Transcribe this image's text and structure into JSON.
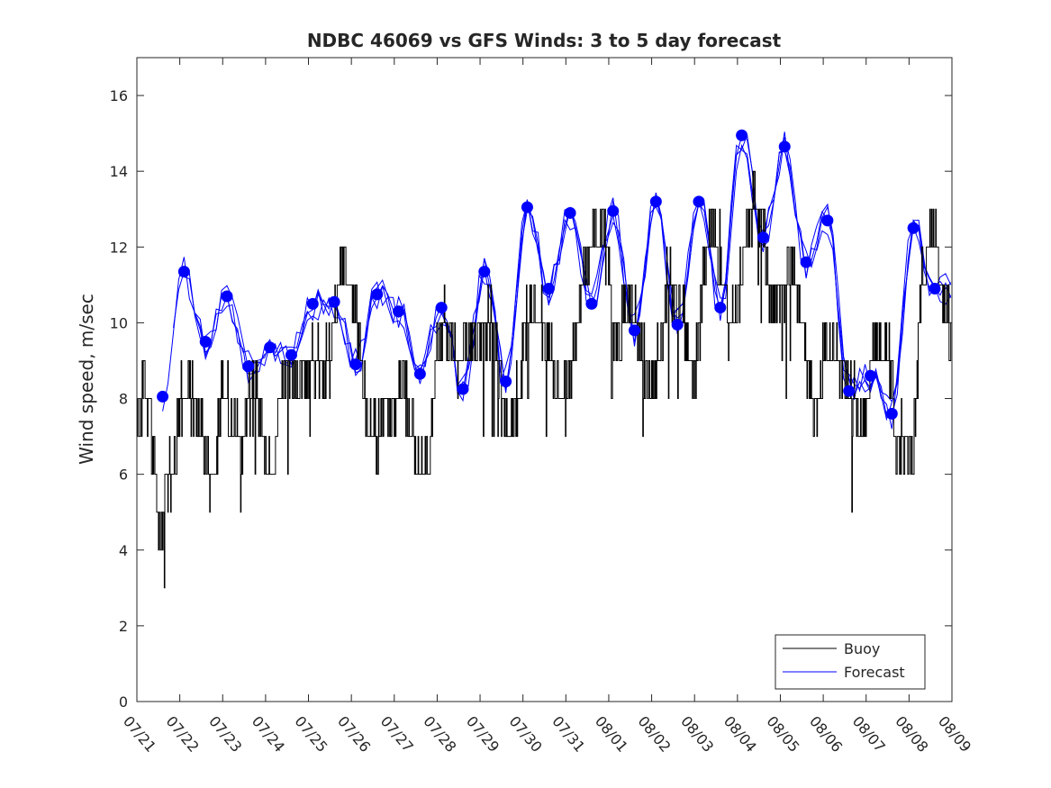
{
  "chart_data": {
    "type": "line",
    "title": "NDBC 46069 vs GFS Winds: 3 to 5 day forecast",
    "xlabel": "",
    "ylabel": "Wind speed, m/sec",
    "xlim": [
      0,
      19
    ],
    "ylim": [
      0,
      17
    ],
    "y_ticks": [
      0,
      2,
      4,
      6,
      8,
      10,
      12,
      14,
      16
    ],
    "x_tick_labels": [
      "07/21",
      "07/22",
      "07/23",
      "07/24",
      "07/25",
      "07/26",
      "07/27",
      "07/28",
      "07/29",
      "07/30",
      "07/31",
      "08/01",
      "08/02",
      "08/03",
      "08/04",
      "08/05",
      "08/06",
      "08/07",
      "08/08",
      "08/09"
    ],
    "grid": false,
    "legend": {
      "position": "bottom-right",
      "entries": [
        "Buoy",
        "Forecast"
      ]
    },
    "colors": {
      "buoy": "#000000",
      "forecast": "#0000ff",
      "markers": "#0000ff"
    },
    "buoy_anchor_points": {
      "x": [
        0,
        0.1,
        0.2,
        0.35,
        0.5,
        0.6,
        0.65,
        0.75,
        0.9,
        1.0,
        1.15,
        1.3,
        1.5,
        1.7,
        1.85,
        2.0,
        2.2,
        2.45,
        2.6,
        2.75,
        2.9,
        3.05,
        3.2,
        3.35,
        3.5,
        3.7,
        3.9,
        4.1,
        4.3,
        4.5,
        4.7,
        4.85,
        5.0,
        5.15,
        5.3,
        5.5,
        5.65,
        5.8,
        6.0,
        6.2,
        6.45,
        6.6,
        6.8,
        7.0,
        7.15,
        7.3,
        7.5,
        7.7,
        7.9,
        8.15,
        8.35,
        8.5,
        8.65,
        8.8,
        8.95,
        9.1,
        9.25,
        9.45,
        9.65,
        9.85,
        10.0,
        10.2,
        10.4,
        10.6,
        10.8,
        10.95,
        11.15,
        11.35,
        11.55,
        11.75,
        11.95,
        12.2,
        12.4,
        12.6,
        12.8,
        13.0,
        13.2,
        13.4,
        13.6,
        13.8,
        14.0,
        14.2,
        14.4,
        14.6,
        14.8,
        15.0,
        15.25,
        15.45,
        15.65,
        15.85,
        16.0,
        16.2,
        16.4,
        16.6,
        16.8,
        17.0,
        17.15,
        17.3,
        17.5,
        17.7,
        17.9,
        18.1,
        18.3,
        18.5,
        18.7,
        18.9,
        19.0
      ],
      "y": [
        7,
        8,
        8.5,
        7,
        5,
        4,
        5.5,
        6,
        6.5,
        8,
        8.5,
        8,
        7.5,
        6,
        6.5,
        8.5,
        7.5,
        7,
        8,
        8.5,
        7,
        6,
        6.5,
        8,
        8.5,
        8.5,
        8.5,
        9,
        9,
        9,
        11,
        12,
        11,
        10,
        8,
        7,
        7,
        8,
        8,
        8.5,
        7,
        6,
        6.5,
        9,
        10,
        9.5,
        9,
        9.5,
        9.5,
        10,
        10,
        8,
        7,
        7.5,
        8.5,
        10,
        10.5,
        10,
        9,
        8,
        8.5,
        9.5,
        11,
        12.5,
        12.5,
        12,
        9.5,
        10,
        10.5,
        9.5,
        8,
        9.5,
        11.5,
        10.5,
        10,
        8.5,
        11,
        12.5,
        12,
        10,
        10.5,
        12,
        13.5,
        12.5,
        10,
        11,
        11.5,
        10.5,
        8.5,
        7.5,
        9,
        9.5,
        9,
        8.5,
        7.5,
        8,
        9,
        9.5,
        9.5,
        7,
        7,
        6.5,
        11,
        12.5,
        11.5,
        10,
        9.5
      ]
    },
    "forecast_markers": {
      "x": [
        0.6,
        1.1,
        1.6,
        2.1,
        2.6,
        3.1,
        3.6,
        4.1,
        4.6,
        5.1,
        5.6,
        6.1,
        6.6,
        7.1,
        7.6,
        8.1,
        8.6,
        9.1,
        9.6,
        10.1,
        10.6,
        11.1,
        11.6,
        12.1,
        12.6,
        13.1,
        13.6,
        14.1,
        14.6,
        15.1,
        15.6,
        16.1,
        16.6,
        17.1,
        17.6,
        18.1,
        18.6
      ],
      "y": [
        8.05,
        11.35,
        9.5,
        10.7,
        8.85,
        9.35,
        9.15,
        10.5,
        10.55,
        8.9,
        10.75,
        10.3,
        8.65,
        10.4,
        8.25,
        11.35,
        8.45,
        13.05,
        10.9,
        12.9,
        10.5,
        12.95,
        9.8,
        13.2,
        9.95,
        13.2,
        10.4,
        14.95,
        12.25,
        14.65,
        11.6,
        12.7,
        8.2,
        8.6,
        7.6,
        12.5,
        10.9
      ]
    }
  }
}
